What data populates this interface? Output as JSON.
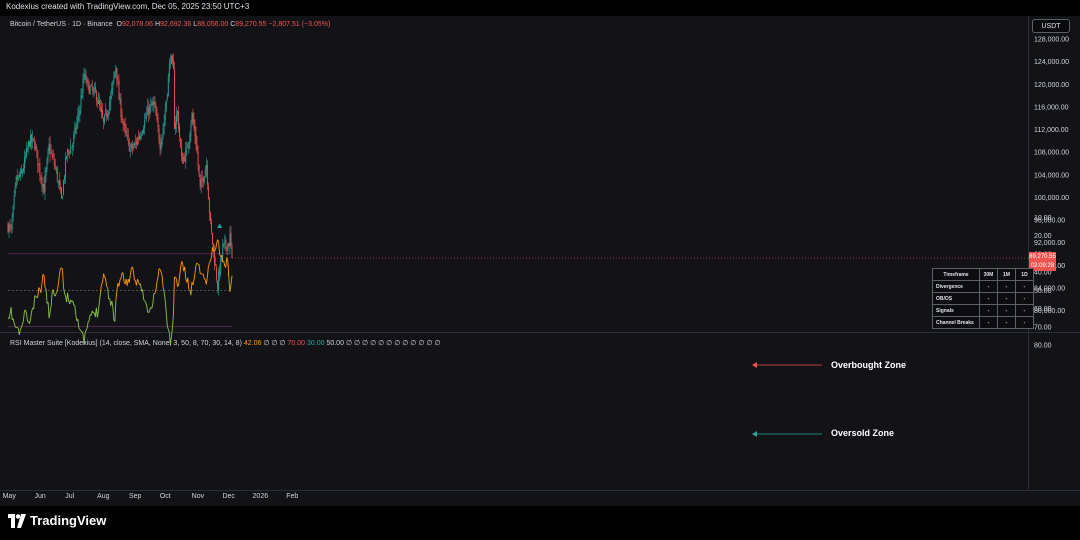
{
  "credit": "Kodexius created with TradingView.com, Dec 05, 2025 23:50 UTC+3",
  "ohlc": {
    "symbol": "Bitcoin / TetherUS · 1D · Binance",
    "open_label": "O",
    "open": "92,078.06",
    "high_label": "H",
    "high": "92,692.36",
    "low_label": "L",
    "low": "88,056.00",
    "close_label": "C",
    "close": "89,270.55",
    "change": "−2,807.51 (−3.05%)"
  },
  "currency_button": "USDT",
  "price_tag": {
    "price": "89,270.55",
    "countdown": "03:09:28"
  },
  "rsi_header": {
    "name": "RSI Master Suite [Kodexius] (14, close, SMA, None, 3, 50, 8, 70, 30, 14, 8)",
    "value": "42.06",
    "mid_1": "∅ ∅ ∅",
    "overbought": "70.00",
    "oversold": "30.00",
    "midline": "50.00",
    "tail": "∅ ∅ ∅ ∅ ∅ ∅ ∅ ∅ ∅ ∅ ∅ ∅"
  },
  "annotations": {
    "overbought": "Overbought Zone",
    "oversold": "Oversold Zone"
  },
  "table": {
    "header": "Timeframe",
    "columns": [
      "30M",
      "1M",
      "1D"
    ],
    "rows": [
      {
        "label": "Divergence",
        "values": [
          "-",
          "-",
          "-"
        ]
      },
      {
        "label": "OB/OS",
        "values": [
          "-",
          "-",
          "-"
        ]
      },
      {
        "label": "Signals",
        "values": [
          "-",
          "-",
          "-"
        ]
      },
      {
        "label": "Channel Breaks",
        "values": [
          "-",
          "-",
          "-"
        ]
      }
    ]
  },
  "brand": "TradingView",
  "colors": {
    "up": "#26a69a",
    "down": "#ef5350",
    "rsi_bull": "#8bc34a",
    "rsi_bear": "#ff9800",
    "zone": "#5a1f4a"
  },
  "chart_data": [
    {
      "type": "candlestick",
      "title": "Bitcoin / TetherUS · 1D · Binance",
      "x_labels": [
        "May",
        "Jun",
        "Jul",
        "Aug",
        "Sep",
        "Oct",
        "Nov",
        "Dec",
        "2026",
        "Feb"
      ],
      "y_ticks": [
        "128,000.00",
        "124,000.00",
        "120,000.00",
        "116,000.00",
        "112,000.00",
        "108,000.00",
        "104,000.00",
        "100,000.00",
        "96,000.00",
        "92,000.00",
        "88,000.00",
        "84,000.00",
        "80,000.00"
      ],
      "ylim": [
        78000,
        129000
      ],
      "anchors": [
        [
          "2025-05-01",
          95000
        ],
        [
          "2025-05-04",
          94000
        ],
        [
          "2025-05-09",
          103000
        ],
        [
          "2025-05-14",
          104000
        ],
        [
          "2025-05-22",
          110000
        ],
        [
          "2025-05-27",
          109500
        ],
        [
          "2025-06-01",
          104500
        ],
        [
          "2025-06-05",
          101500
        ],
        [
          "2025-06-10",
          109000
        ],
        [
          "2025-06-17",
          104500
        ],
        [
          "2025-06-22",
          99500
        ],
        [
          "2025-06-27",
          107500
        ],
        [
          "2025-07-03",
          109500
        ],
        [
          "2025-07-10",
          116000
        ],
        [
          "2025-07-14",
          121500
        ],
        [
          "2025-07-18",
          119500
        ],
        [
          "2025-07-26",
          118000
        ],
        [
          "2025-08-02",
          113000
        ],
        [
          "2025-08-09",
          117500
        ],
        [
          "2025-08-14",
          123500
        ],
        [
          "2025-08-17",
          117500
        ],
        [
          "2025-08-22",
          112000
        ],
        [
          "2025-08-28",
          108500
        ],
        [
          "2025-09-01",
          109000
        ],
        [
          "2025-09-08",
          112000
        ],
        [
          "2025-09-15",
          115500
        ],
        [
          "2025-09-20",
          116500
        ],
        [
          "2025-09-26",
          109500
        ],
        [
          "2025-09-30",
          113500
        ],
        [
          "2025-10-06",
          125000
        ],
        [
          "2025-10-09",
          122000
        ],
        [
          "2025-10-10",
          113000
        ],
        [
          "2025-10-13",
          115000
        ],
        [
          "2025-10-17",
          106500
        ],
        [
          "2025-10-22",
          108000
        ],
        [
          "2025-10-27",
          114500
        ],
        [
          "2025-10-31",
          110000
        ],
        [
          "2025-11-04",
          101500
        ],
        [
          "2025-11-10",
          106000
        ],
        [
          "2025-11-14",
          95000
        ],
        [
          "2025-11-21",
          84500
        ],
        [
          "2025-11-26",
          91000
        ],
        [
          "2025-12-02",
          92000
        ],
        [
          "2025-12-03",
          93000
        ],
        [
          "2025-12-05",
          89270
        ]
      ]
    },
    {
      "type": "line",
      "title": "RSI Master Suite [Kodexius] (14, close, SMA, None, 3, 50, 8, 70, 30, 14, 8)",
      "y_ticks": [
        "80.00",
        "70.00",
        "60.00",
        "50.00",
        "40.00",
        "30.00",
        "20.00",
        "10.00"
      ],
      "ylim": [
        5,
        83
      ],
      "overbought": 70,
      "oversold": 30,
      "midline": 50,
      "anchors": [
        [
          "2025-05-01",
          68
        ],
        [
          "2025-05-04",
          62
        ],
        [
          "2025-05-08",
          70
        ],
        [
          "2025-05-13",
          74
        ],
        [
          "2025-05-17",
          62
        ],
        [
          "2025-05-22",
          68
        ],
        [
          "2025-05-27",
          56
        ],
        [
          "2025-06-02",
          49
        ],
        [
          "2025-06-05",
          41
        ],
        [
          "2025-06-10",
          64
        ],
        [
          "2025-06-13",
          52
        ],
        [
          "2025-06-17",
          50
        ],
        [
          "2025-06-22",
          37
        ],
        [
          "2025-06-26",
          54
        ],
        [
          "2025-07-01",
          55
        ],
        [
          "2025-07-04",
          56
        ],
        [
          "2025-07-11",
          74
        ],
        [
          "2025-07-14",
          78
        ],
        [
          "2025-07-18",
          68
        ],
        [
          "2025-07-23",
          62
        ],
        [
          "2025-07-27",
          62
        ],
        [
          "2025-08-02",
          40
        ],
        [
          "2025-08-06",
          50
        ],
        [
          "2025-08-10",
          58
        ],
        [
          "2025-08-13",
          66
        ],
        [
          "2025-08-15",
          48
        ],
        [
          "2025-08-20",
          42
        ],
        [
          "2025-08-25",
          46
        ],
        [
          "2025-08-30",
          40
        ],
        [
          "2025-09-02",
          46
        ],
        [
          "2025-09-06",
          44
        ],
        [
          "2025-09-10",
          54
        ],
        [
          "2025-09-14",
          62
        ],
        [
          "2025-09-18",
          60
        ],
        [
          "2025-09-22",
          48
        ],
        [
          "2025-09-26",
          37
        ],
        [
          "2025-09-30",
          52
        ],
        [
          "2025-10-04",
          72
        ],
        [
          "2025-10-06",
          78
        ],
        [
          "2025-10-09",
          65
        ],
        [
          "2025-10-10",
          44
        ],
        [
          "2025-10-14",
          46
        ],
        [
          "2025-10-17",
          34
        ],
        [
          "2025-10-22",
          44
        ],
        [
          "2025-10-26",
          52
        ],
        [
          "2025-10-30",
          38
        ],
        [
          "2025-11-03",
          36
        ],
        [
          "2025-11-07",
          43
        ],
        [
          "2025-11-11",
          44
        ],
        [
          "2025-11-14",
          31
        ],
        [
          "2025-11-18",
          27
        ],
        [
          "2025-11-21",
          23
        ],
        [
          "2025-11-25",
          33
        ],
        [
          "2025-11-28",
          36
        ],
        [
          "2025-12-01",
          34
        ],
        [
          "2025-12-03",
          49
        ],
        [
          "2025-12-05",
          42
        ]
      ],
      "marker": [
        "2025-11-23",
        15
      ]
    }
  ]
}
